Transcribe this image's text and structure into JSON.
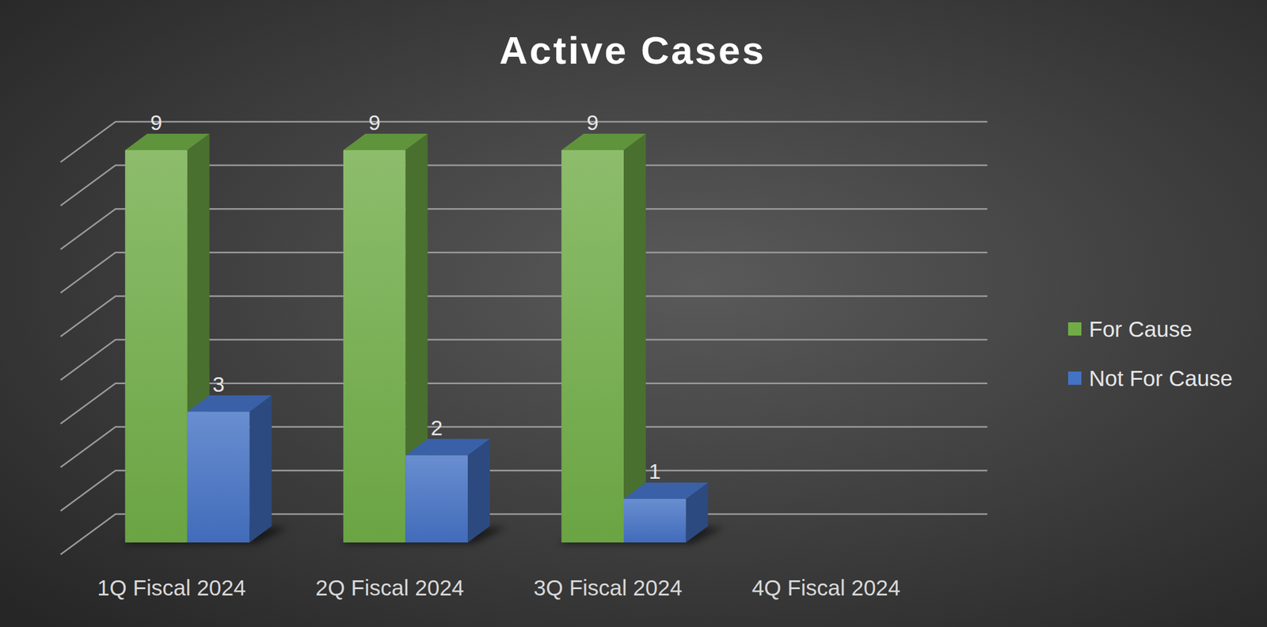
{
  "chart_data": {
    "type": "bar",
    "title": "Active Cases",
    "categories": [
      "1Q Fiscal 2024",
      "2Q Fiscal 2024",
      "3Q Fiscal 2024",
      "4Q Fiscal 2024"
    ],
    "series": [
      {
        "name": "For Cause",
        "color": "#70ad47",
        "values": [
          9,
          9,
          9,
          null
        ]
      },
      {
        "name": "Not For Cause",
        "color": "#4472c4",
        "values": [
          3,
          2,
          1,
          null
        ]
      }
    ],
    "ylim": [
      0,
      9
    ],
    "yticks": [
      0,
      1,
      2,
      3,
      4,
      5,
      6,
      7,
      8,
      9
    ],
    "grid": true,
    "legend": "right",
    "data_labels": true,
    "tick_labels": "x"
  }
}
